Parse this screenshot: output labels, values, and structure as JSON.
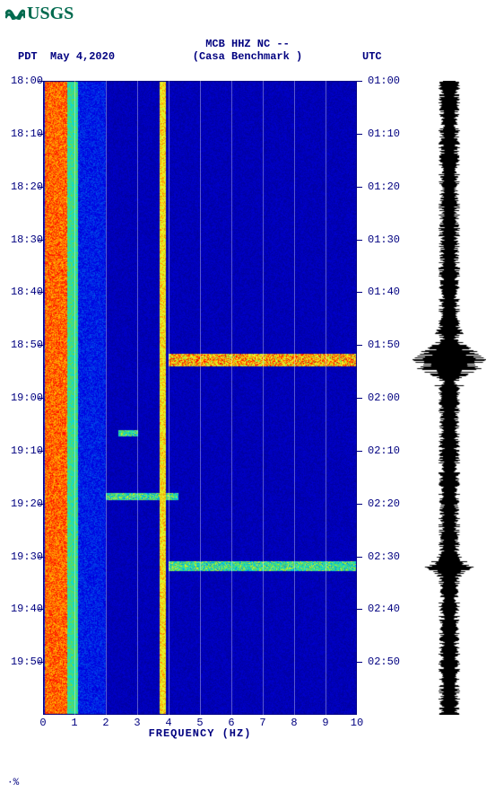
{
  "logo": {
    "text": "USGS",
    "color": "#006a4e"
  },
  "header": {
    "line1": "MCB HHZ NC --",
    "line2": "(Casa Benchmark )",
    "left_tz": "PDT",
    "date": "May 4,2020",
    "right_tz": "UTC"
  },
  "spectrogram": {
    "type": "spectrogram",
    "x_axis": {
      "label": "FREQUENCY (HZ)",
      "xlim": [
        0,
        10
      ],
      "ticks": [
        0,
        1,
        2,
        3,
        4,
        5,
        6,
        7,
        8,
        9,
        10
      ],
      "tick_labels": [
        "0",
        "1",
        "2",
        "3",
        "4",
        "5",
        "6",
        "7",
        "8",
        "9",
        "10"
      ],
      "fontsize": 12
    },
    "left_time": {
      "labels": [
        "18:00",
        "18:10",
        "18:20",
        "18:30",
        "18:40",
        "18:50",
        "19:00",
        "19:10",
        "19:20",
        "19:30",
        "19:40",
        "19:50"
      ],
      "positions_pct": [
        0,
        8.33,
        16.67,
        25,
        33.33,
        41.67,
        50,
        58.33,
        66.67,
        75,
        83.33,
        91.67
      ]
    },
    "right_time": {
      "labels": [
        "01:00",
        "01:10",
        "01:20",
        "01:30",
        "01:40",
        "01:50",
        "02:00",
        "02:10",
        "02:20",
        "02:30",
        "02:40",
        "02:50"
      ],
      "positions_pct": [
        0,
        8.33,
        16.67,
        25,
        33.33,
        41.67,
        50,
        58.33,
        66.67,
        75,
        83.33,
        91.67
      ]
    },
    "grid_x_positions": [
      1,
      2,
      3,
      4,
      5,
      6,
      7,
      8,
      9
    ],
    "background_color": "#0a1a9b",
    "base_color": "#142acc",
    "low_color": "#0f2bd6",
    "mid_color": "#1ec3e6",
    "high_color": "#fffd38",
    "hot_color": "#ff2a00",
    "persistent_bands": [
      {
        "freq_lo": 0.05,
        "freq_hi": 0.75,
        "intensity": "hot"
      },
      {
        "freq_lo": 3.7,
        "freq_hi": 3.9,
        "intensity": "mid-hot"
      }
    ],
    "events": [
      {
        "t_pct": 44.0,
        "t_span_pct": 2.0,
        "freq_lo": 4.0,
        "freq_hi": 10.0,
        "intensity": "hot"
      },
      {
        "t_pct": 76.5,
        "t_span_pct": 1.5,
        "freq_lo": 4.0,
        "freq_hi": 10.0,
        "intensity": "mid"
      },
      {
        "t_pct": 65.5,
        "t_span_pct": 1.2,
        "freq_lo": 2.0,
        "freq_hi": 4.3,
        "intensity": "mid"
      },
      {
        "t_pct": 55.5,
        "t_span_pct": 1.0,
        "freq_lo": 2.4,
        "freq_hi": 3.0,
        "intensity": "mid"
      }
    ]
  },
  "seismogram": {
    "type": "waveform",
    "color": "#000000",
    "baseline_amp": 0.22,
    "bursts": [
      {
        "t_pct": 44.0,
        "span_pct": 4,
        "amp": 1.0
      },
      {
        "t_pct": 76.5,
        "span_pct": 3,
        "amp": 0.55
      }
    ]
  },
  "footmark": "·%"
}
